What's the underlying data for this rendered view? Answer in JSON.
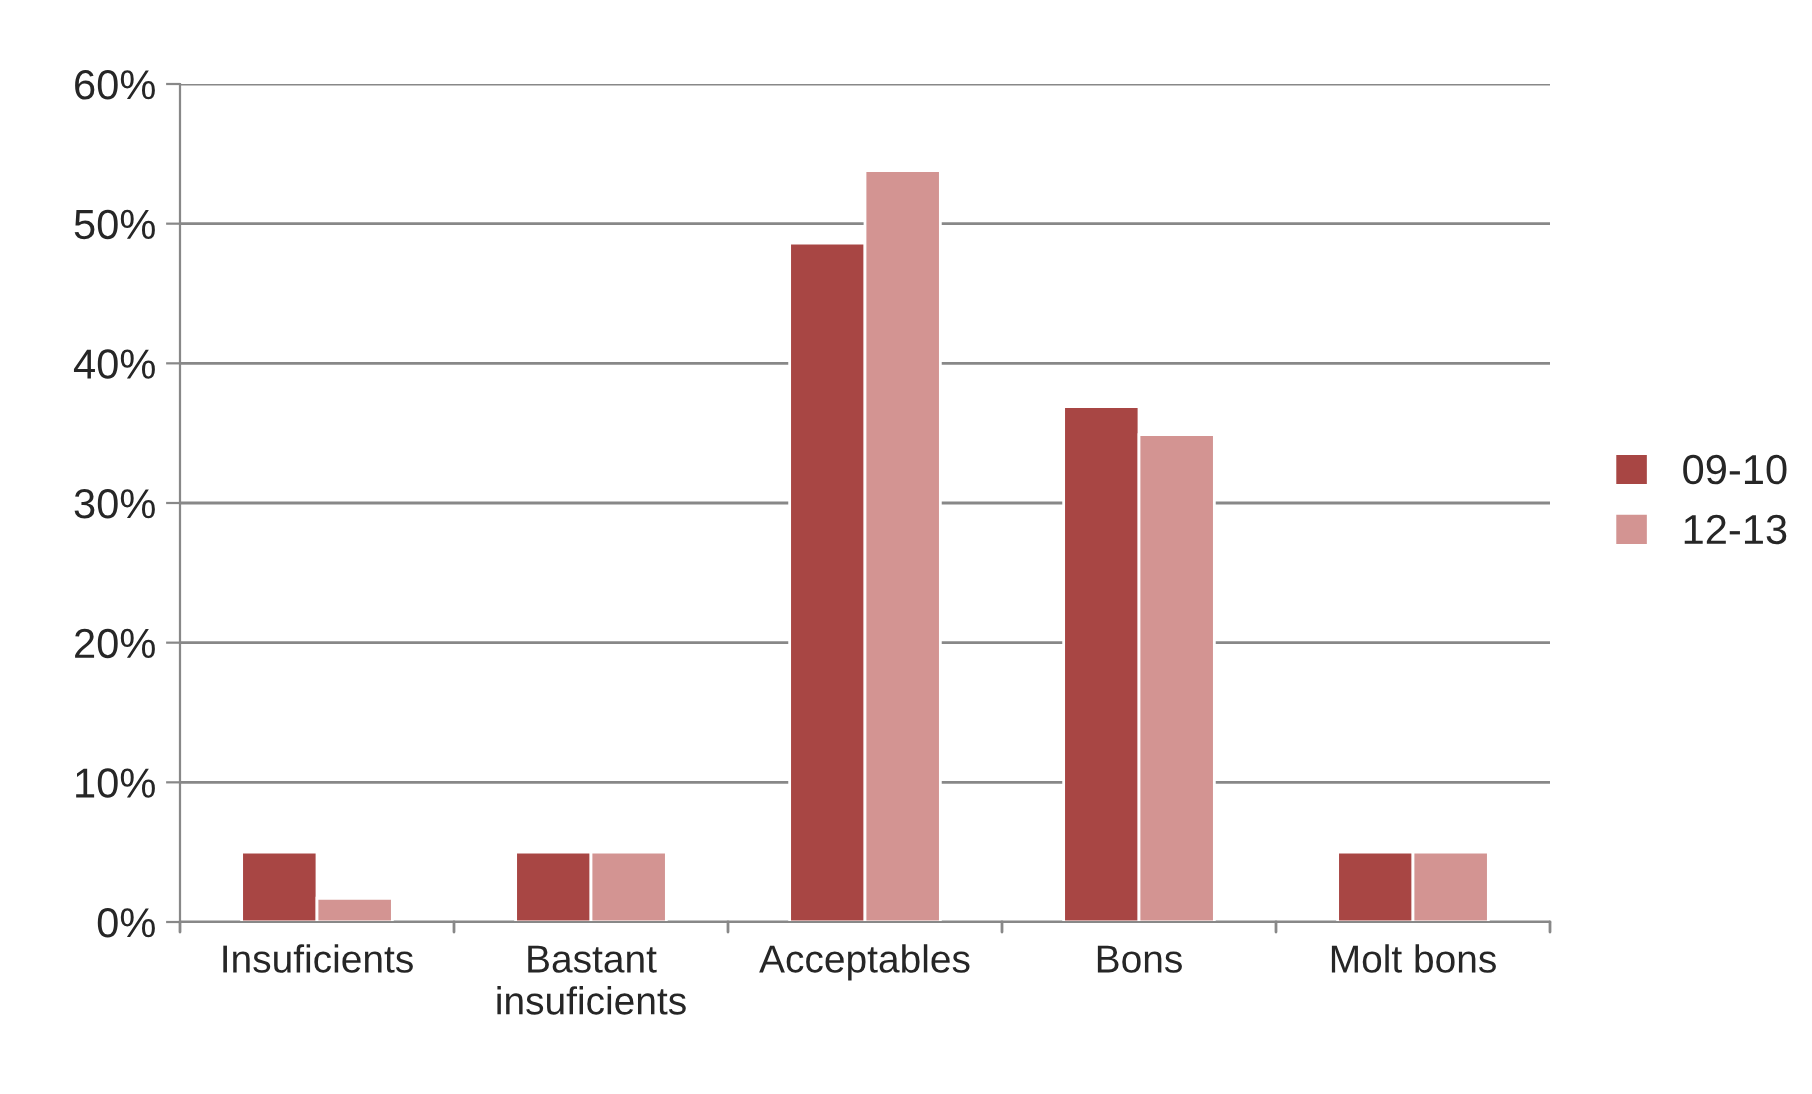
{
  "chart_data": {
    "type": "bar",
    "categories": [
      "Insuficients",
      "Bastant\ninsuficients",
      "Acceptables",
      "Bons",
      "Molt bons"
    ],
    "series": [
      {
        "name": "09-10",
        "color": "#a84644",
        "values": [
          5.0,
          5.0,
          48.6,
          36.9,
          5.0
        ]
      },
      {
        "name": "12-13",
        "color": "#d39492",
        "values": [
          1.7,
          5.0,
          53.8,
          34.9,
          5.0
        ]
      }
    ],
    "ylim": [
      0,
      60
    ],
    "yticks": [
      {
        "value": 0,
        "label": "0%"
      },
      {
        "value": 10,
        "label": "10%"
      },
      {
        "value": 20,
        "label": "20%"
      },
      {
        "value": 30,
        "label": "30%"
      },
      {
        "value": 40,
        "label": "40%"
      },
      {
        "value": 50,
        "label": "50%"
      },
      {
        "value": 60,
        "label": "60%"
      }
    ],
    "grid": "y",
    "legend": "right"
  }
}
